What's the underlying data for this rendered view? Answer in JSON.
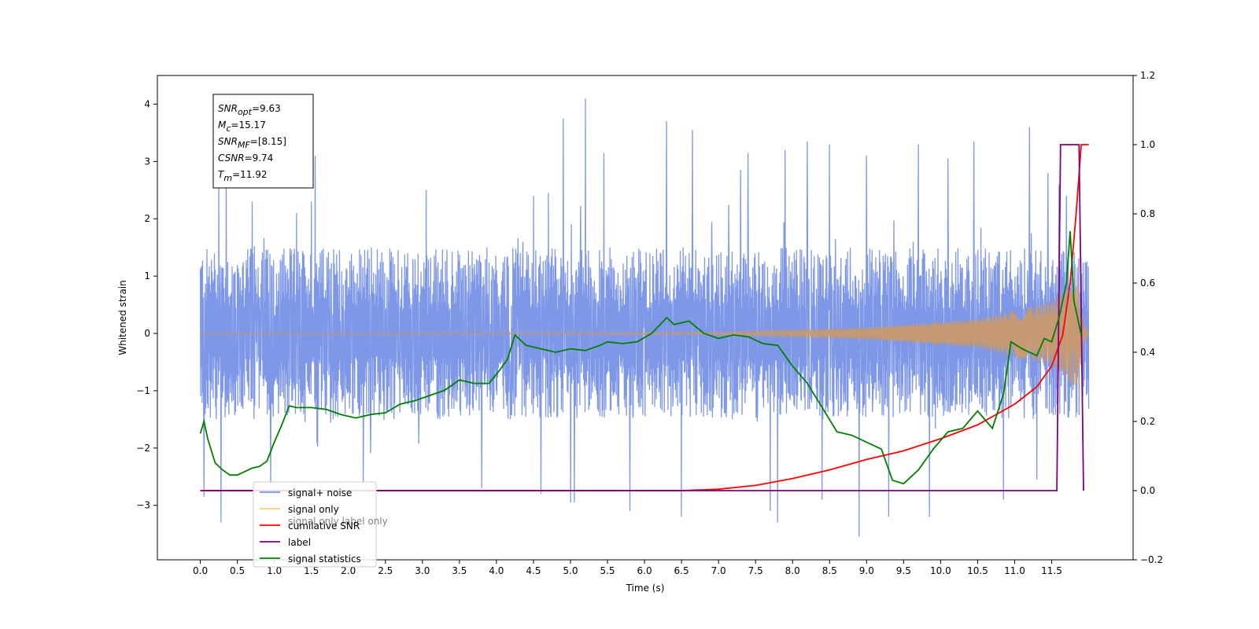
{
  "chart_data": {
    "type": "line",
    "xlabel": "Time (s)",
    "ylabel": "Whitened strain",
    "xlim": [
      -0.58,
      12.6
    ],
    "ylim": [
      -3.95,
      4.5
    ],
    "ylim_right": [
      -0.2,
      1.2
    ],
    "x_ticks": [
      "0.0",
      "0.5",
      "1.0",
      "1.5",
      "2.0",
      "2.5",
      "3.0",
      "3.5",
      "4.0",
      "4.5",
      "5.0",
      "5.5",
      "6.0",
      "6.5",
      "7.0",
      "7.5",
      "8.0",
      "8.5",
      "9.0",
      "9.5",
      "10.0",
      "10.5",
      "11.0",
      "11.5"
    ],
    "y_ticks_left": [
      "4",
      "3",
      "2",
      "1",
      "0",
      "−1",
      "−2",
      "−3"
    ],
    "y_ticks_right": [
      "1.2",
      "1.0",
      "0.8",
      "0.6",
      "0.4",
      "0.2",
      "0.0",
      "−0.2"
    ],
    "annotation": [
      {
        "sym": "SNR",
        "sub": "opt",
        "value": "=9.63"
      },
      {
        "sym": "M",
        "sub": "c",
        "value": "=15.17"
      },
      {
        "sym": "SNR",
        "sub": "MF",
        "value": "=[8.15]"
      },
      {
        "sym": "CSNR",
        "sub": "",
        "value": "=9.74"
      },
      {
        "sym": "T",
        "sub": "m",
        "value": "=11.92"
      }
    ],
    "legend": [
      {
        "label": "signal+ noise",
        "color": "#7891e6"
      },
      {
        "label": "signal only",
        "color": "#ffcc77"
      },
      {
        "label": "cumilative SNR",
        "color": "#ff0000"
      },
      {
        "label": "label",
        "color": "#800080"
      },
      {
        "label": "signal statistics",
        "color": "#008000"
      }
    ],
    "legend_ghost_text": [
      "signal only",
      "label only"
    ],
    "legend_loc": "lower-left",
    "series": [
      {
        "name": "signal+ noise",
        "axis": "left",
        "color": "#7891e6",
        "x_range": [
          0.0,
          12.0
        ],
        "envelope_low": -1.6,
        "envelope_high": 1.6,
        "extremes": [
          [
            0.05,
            -2.85
          ],
          [
            0.25,
            2.6
          ],
          [
            0.28,
            -3.3
          ],
          [
            0.35,
            2.8
          ],
          [
            0.7,
            2.3
          ],
          [
            0.95,
            -2.6
          ],
          [
            1.3,
            2.1
          ],
          [
            1.5,
            2.3
          ],
          [
            1.55,
            3.1
          ],
          [
            2.2,
            -2.6
          ],
          [
            3.05,
            2.5
          ],
          [
            3.8,
            -2.7
          ],
          [
            4.5,
            2.4
          ],
          [
            4.6,
            -2.8
          ],
          [
            4.7,
            2.45
          ],
          [
            4.9,
            3.75
          ],
          [
            5.0,
            -2.95
          ],
          [
            5.05,
            -2.95
          ],
          [
            5.2,
            4.1
          ],
          [
            5.45,
            3.15
          ],
          [
            5.8,
            -3.1
          ],
          [
            6.3,
            3.7
          ],
          [
            6.5,
            -3.2
          ],
          [
            6.65,
            3.55
          ],
          [
            7.3,
            2.85
          ],
          [
            7.4,
            3.15
          ],
          [
            7.7,
            -3.1
          ],
          [
            7.8,
            -3.3
          ],
          [
            7.9,
            3.2
          ],
          [
            8.2,
            3.35
          ],
          [
            8.4,
            -2.9
          ],
          [
            8.5,
            3.3
          ],
          [
            8.9,
            -3.55
          ],
          [
            9.0,
            3.1
          ],
          [
            9.3,
            -3.2
          ],
          [
            9.7,
            3.3
          ],
          [
            9.85,
            -3.2
          ],
          [
            10.1,
            3.05
          ],
          [
            10.45,
            3.35
          ],
          [
            10.85,
            -2.9
          ],
          [
            11.2,
            3.6
          ],
          [
            11.3,
            -2.55
          ],
          [
            11.45,
            2.8
          ],
          [
            11.6,
            2.6
          ],
          [
            11.7,
            2.4
          ]
        ]
      },
      {
        "name": "signal only",
        "axis": "left",
        "color": "#cc9966",
        "x_range": [
          0.0,
          12.0
        ],
        "amplitude_at": [
          [
            0.0,
            0.0
          ],
          [
            7.0,
            0.02
          ],
          [
            9.0,
            0.1
          ],
          [
            10.5,
            0.25
          ],
          [
            11.5,
            0.55
          ],
          [
            11.85,
            0.95
          ],
          [
            11.93,
            0.2
          ],
          [
            12.0,
            0.0
          ]
        ]
      },
      {
        "name": "cumilative SNR",
        "axis": "right",
        "color": "#ff0000",
        "x": [
          0.0,
          6.5,
          7.0,
          7.5,
          8.0,
          8.5,
          9.0,
          9.5,
          10.0,
          10.5,
          11.0,
          11.3,
          11.5,
          11.65,
          11.75,
          11.83,
          11.9,
          12.0
        ],
        "y": [
          0.0,
          0.0,
          0.004,
          0.015,
          0.035,
          0.06,
          0.09,
          0.115,
          0.15,
          0.19,
          0.25,
          0.3,
          0.36,
          0.45,
          0.6,
          0.8,
          1.0,
          1.0
        ]
      },
      {
        "name": "label",
        "axis": "right",
        "color": "#800080",
        "x": [
          0.0,
          11.57,
          11.62,
          11.87,
          11.93
        ],
        "y": [
          0.0,
          0.0,
          1.0,
          1.0,
          0.0
        ]
      },
      {
        "name": "signal statistics",
        "axis": "right",
        "color": "#008000",
        "x": [
          0.0,
          0.05,
          0.1,
          0.2,
          0.3,
          0.4,
          0.5,
          0.6,
          0.7,
          0.8,
          0.9,
          1.0,
          1.1,
          1.2,
          1.3,
          1.5,
          1.7,
          1.9,
          2.1,
          2.3,
          2.5,
          2.7,
          2.9,
          3.1,
          3.3,
          3.5,
          3.7,
          3.9,
          4.05,
          4.15,
          4.25,
          4.4,
          4.6,
          4.8,
          5.0,
          5.2,
          5.4,
          5.5,
          5.7,
          5.9,
          6.1,
          6.3,
          6.4,
          6.6,
          6.8,
          7.0,
          7.2,
          7.4,
          7.6,
          7.8,
          8.0,
          8.2,
          8.4,
          8.6,
          8.8,
          9.0,
          9.2,
          9.35,
          9.5,
          9.7,
          9.9,
          10.1,
          10.3,
          10.5,
          10.7,
          10.85,
          10.95,
          11.1,
          11.3,
          11.4,
          11.5,
          11.6,
          11.7,
          11.75,
          11.8,
          11.9
        ],
        "y": [
          0.165,
          0.2,
          0.15,
          0.08,
          0.06,
          0.045,
          0.045,
          0.055,
          0.065,
          0.07,
          0.085,
          0.14,
          0.19,
          0.245,
          0.24,
          0.24,
          0.235,
          0.22,
          0.21,
          0.22,
          0.225,
          0.25,
          0.26,
          0.275,
          0.29,
          0.32,
          0.31,
          0.31,
          0.35,
          0.38,
          0.45,
          0.42,
          0.41,
          0.4,
          0.41,
          0.405,
          0.42,
          0.43,
          0.425,
          0.43,
          0.455,
          0.5,
          0.48,
          0.49,
          0.455,
          0.44,
          0.45,
          0.445,
          0.425,
          0.42,
          0.36,
          0.31,
          0.24,
          0.17,
          0.16,
          0.14,
          0.12,
          0.03,
          0.02,
          0.06,
          0.12,
          0.17,
          0.18,
          0.23,
          0.18,
          0.28,
          0.43,
          0.41,
          0.39,
          0.44,
          0.43,
          0.5,
          0.6,
          0.75,
          0.55,
          0.45
        ]
      }
    ]
  }
}
